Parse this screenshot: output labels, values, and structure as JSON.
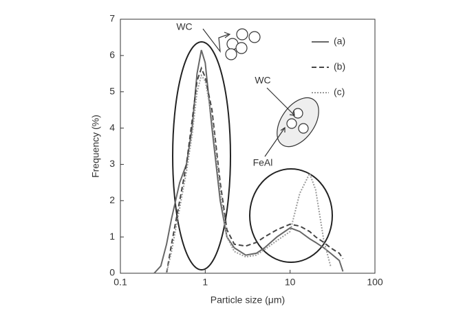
{
  "chart_data": {
    "type": "line",
    "xlabel": "Particle size (μm)",
    "ylabel": "Frequency (%)",
    "xscale": "log",
    "xlim": [
      0.1,
      100
    ],
    "xticks": [
      0.1,
      1,
      10,
      100
    ],
    "ylim": [
      0,
      7
    ],
    "yticks": [
      0,
      1,
      2,
      3,
      4,
      5,
      6,
      7
    ],
    "x": [
      0.25,
      0.3,
      0.35,
      0.4,
      0.5,
      0.6,
      0.7,
      0.8,
      0.9,
      1,
      1.2,
      1.5,
      1.8,
      2.2,
      3,
      4,
      5,
      7,
      10,
      13,
      17,
      20,
      25,
      30,
      38,
      42
    ],
    "series": [
      {
        "name": "(a)",
        "color": "#666666",
        "style": "solid",
        "values": [
          0,
          0.2,
          0.8,
          1.5,
          2.5,
          3.0,
          4.0,
          5.5,
          6.15,
          5.8,
          4.0,
          2.0,
          1.0,
          0.7,
          0.5,
          0.55,
          0.7,
          1.0,
          1.25,
          1.15,
          0.95,
          0.85,
          0.7,
          0.55,
          0.35,
          0.05
        ]
      },
      {
        "name": "(b)",
        "color": "#444444",
        "style": "dashed",
        "values": [
          null,
          null,
          0,
          0.8,
          2.0,
          3.0,
          4.2,
          5.3,
          5.65,
          5.4,
          4.5,
          2.5,
          1.2,
          0.8,
          0.75,
          0.85,
          1.0,
          1.2,
          1.35,
          1.3,
          1.15,
          1.0,
          0.85,
          0.7,
          0.55,
          0.4
        ]
      },
      {
        "name": "(c)",
        "color": "#999999",
        "style": "dotted",
        "values": [
          null,
          null,
          0,
          0.6,
          1.8,
          2.8,
          3.8,
          5.0,
          5.45,
          5.3,
          4.3,
          2.3,
          1.0,
          0.6,
          0.45,
          0.5,
          0.65,
          0.9,
          1.15,
          2.2,
          2.75,
          2.3,
          0.9,
          0.2,
          null,
          null
        ]
      }
    ],
    "annotations": [
      "WC",
      "WC",
      "FeAl"
    ]
  }
}
